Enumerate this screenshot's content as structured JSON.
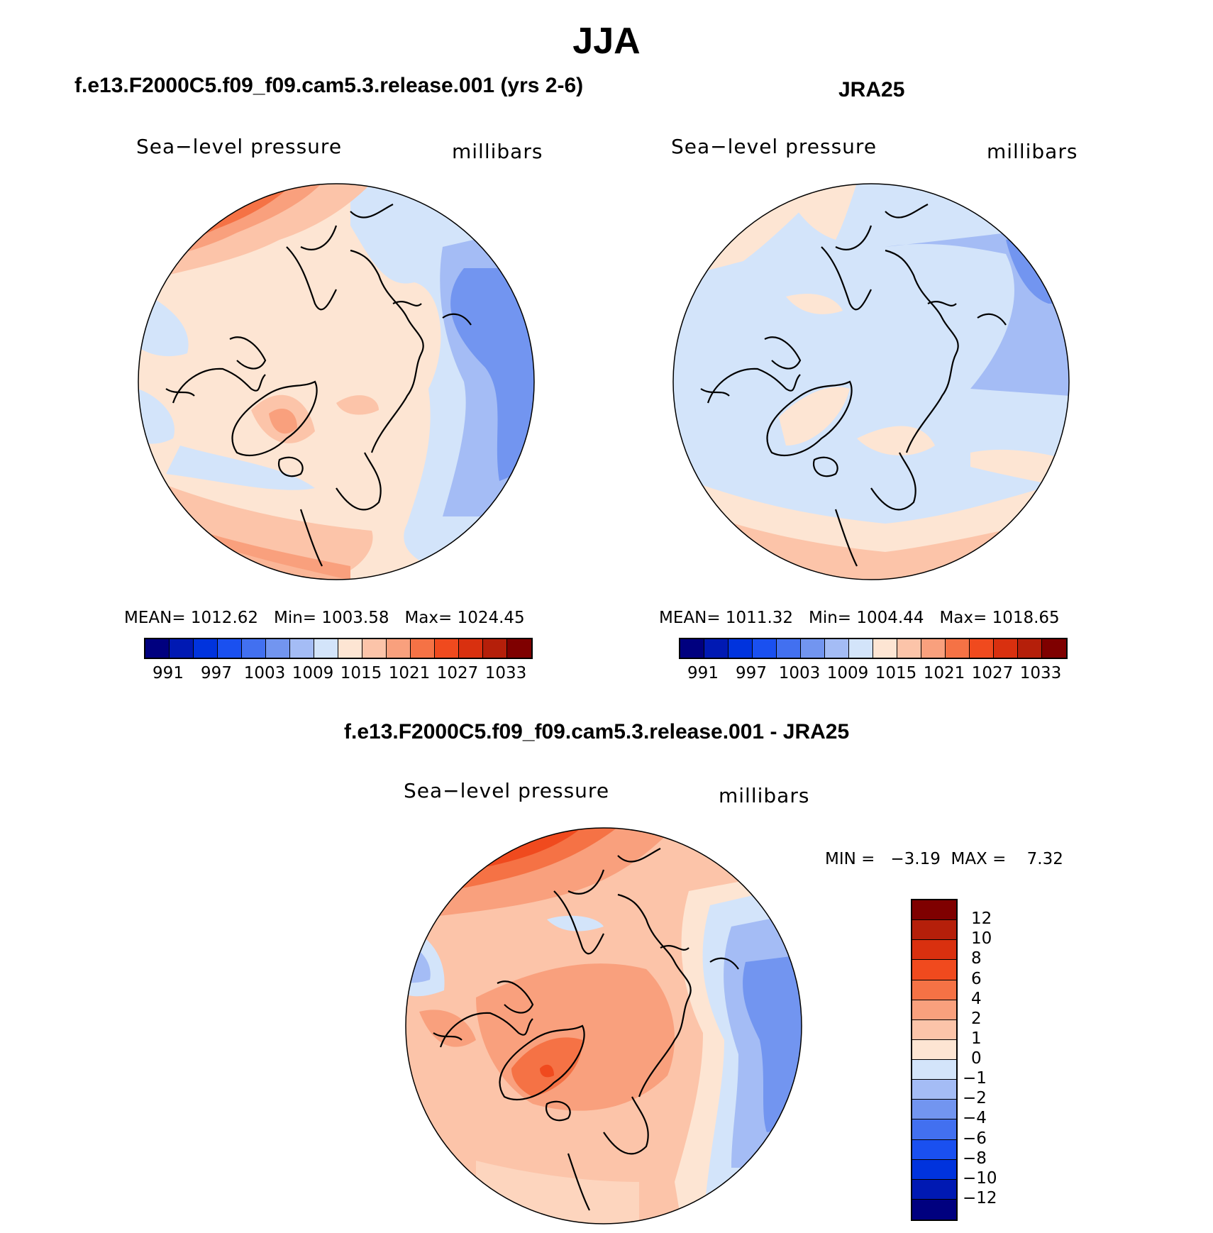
{
  "title": "JJA",
  "panels": [
    {
      "id": "model",
      "title": "f.e13.F2000C5.f09_f09.cam5.3.release.001 (yrs 2-6)",
      "variable_label": "Sea−level pressure",
      "units_label": "millibars",
      "stats": {
        "mean_label": "MEAN=",
        "mean": "1012.62",
        "min_label": "Min=",
        "min": "1003.58",
        "max_label": "Max=",
        "max": "1024.45"
      }
    },
    {
      "id": "obs",
      "title": "JRA25",
      "variable_label": "Sea−level pressure",
      "units_label": "millibars",
      "stats": {
        "mean_label": "MEAN=",
        "mean": "1011.32",
        "min_label": "Min=",
        "min": "1004.44",
        "max_label": "Max=",
        "max": "1018.65"
      }
    },
    {
      "id": "diff",
      "title": "f.e13.F2000C5.f09_f09.cam5.3.release.001 - JRA25",
      "variable_label": "Sea−level pressure",
      "units_label": "millibars",
      "minmax": {
        "min_label": "MIN =",
        "min": "−3.19",
        "max_label": "MAX =",
        "max": "7.32"
      }
    }
  ],
  "abs_colorbar": {
    "colors": [
      "#00007f",
      "#0019b3",
      "#0033dd",
      "#1a50f0",
      "#4270f0",
      "#7295f0",
      "#a4bcf5",
      "#d3e4fa",
      "#fde5d3",
      "#fcc4a9",
      "#f9a07d",
      "#f57245",
      "#f04a1e",
      "#d9300f",
      "#b51f0a",
      "#7f0000"
    ],
    "tick_labels": [
      "991",
      "997",
      "1003",
      "1009",
      "1015",
      "1021",
      "1027",
      "1033"
    ]
  },
  "diff_colorbar": {
    "colors_top_to_bottom": [
      "#7f0000",
      "#b51f0a",
      "#d9300f",
      "#f04a1e",
      "#f57245",
      "#f9a07d",
      "#fcc4a9",
      "#fde5d3",
      "#d3e4fa",
      "#a4bcf5",
      "#7295f0",
      "#4270f0",
      "#1a50f0",
      "#0033dd",
      "#0019b3",
      "#00007f"
    ],
    "tick_labels_top_to_bottom": [
      "12",
      "10",
      "8",
      "6",
      "4",
      "2",
      "1",
      "0",
      "−1",
      "−2",
      "−4",
      "−6",
      "−8",
      "−10",
      "−12"
    ]
  }
}
